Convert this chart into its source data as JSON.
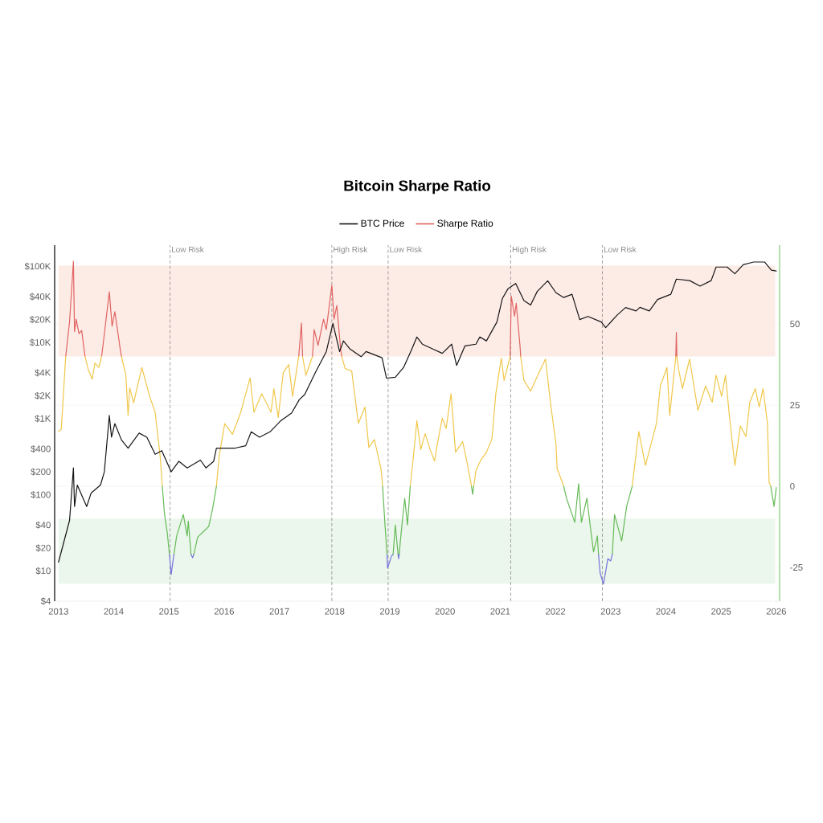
{
  "chart_data": {
    "type": "line",
    "title": "Bitcoin Sharpe Ratio",
    "xlim": [
      2012.93,
      2026.06
    ],
    "xticks": [
      2013,
      2014,
      2015,
      2016,
      2017,
      2018,
      2019,
      2020,
      2021,
      2022,
      2023,
      2024,
      2025,
      2026
    ],
    "log": "y",
    "ylim": [
      4,
      190000
    ],
    "yticks": [
      {
        "value": 4,
        "label": "$4"
      },
      {
        "value": 10,
        "label": "$10"
      },
      {
        "value": 20,
        "label": "$20"
      },
      {
        "value": 40,
        "label": "$40"
      },
      {
        "value": 100,
        "label": "$100"
      },
      {
        "value": 200,
        "label": "$200"
      },
      {
        "value": 400,
        "label": "$400"
      },
      {
        "value": 1000,
        "label": "$1K"
      },
      {
        "value": 2000,
        "label": "$2K"
      },
      {
        "value": 4000,
        "label": "$4K"
      },
      {
        "value": 10000,
        "label": "$10K"
      },
      {
        "value": 20000,
        "label": "$20K"
      },
      {
        "value": 40000,
        "label": "$40K"
      },
      {
        "value": 100000,
        "label": "$100K"
      }
    ],
    "y2lim": [
      -35.4,
      74.3
    ],
    "y2ticks": [
      -25,
      0,
      25,
      50
    ],
    "grid": "y",
    "legend": "top",
    "series": [
      {
        "name": "BTC Price",
        "color": "#151515",
        "axis": "y",
        "x": [
          2013.0,
          2013.2,
          2013.27,
          2013.29,
          2013.34,
          2013.51,
          2013.59,
          2013.76,
          2013.83,
          2013.92,
          2013.96,
          2014.02,
          2014.14,
          2014.26,
          2014.46,
          2014.6,
          2014.75,
          2014.87,
          2015.04,
          2015.18,
          2015.33,
          2015.57,
          2015.67,
          2015.81,
          2015.86,
          2016.01,
          2016.2,
          2016.39,
          2016.49,
          2016.64,
          2016.83,
          2017.02,
          2017.22,
          2017.36,
          2017.46,
          2017.65,
          2017.85,
          2017.97,
          2018.09,
          2018.16,
          2018.28,
          2018.48,
          2018.57,
          2018.86,
          2018.94,
          2019.1,
          2019.25,
          2019.4,
          2019.49,
          2019.59,
          2019.78,
          2019.95,
          2020.12,
          2020.21,
          2020.36,
          2020.56,
          2020.63,
          2020.75,
          2020.94,
          2021.04,
          2021.14,
          2021.28,
          2021.43,
          2021.55,
          2021.67,
          2021.86,
          2022.01,
          2022.15,
          2022.3,
          2022.44,
          2022.59,
          2022.83,
          2022.91,
          2023.12,
          2023.27,
          2023.46,
          2023.53,
          2023.7,
          2023.85,
          2024.09,
          2024.19,
          2024.43,
          2024.62,
          2024.82,
          2024.91,
          2025.11,
          2025.25,
          2025.4,
          2025.59,
          2025.79,
          2025.91,
          2026.0
        ],
        "values": [
          13,
          46,
          225,
          70,
          134,
          70,
          105,
          134,
          200,
          1100,
          570,
          860,
          525,
          410,
          645,
          570,
          340,
          380,
          200,
          275,
          225,
          285,
          225,
          275,
          410,
          410,
          410,
          440,
          670,
          570,
          670,
          930,
          1180,
          1770,
          2080,
          4000,
          7600,
          17800,
          7600,
          10500,
          8200,
          6500,
          7600,
          6300,
          3400,
          3500,
          4700,
          8200,
          11800,
          9500,
          8200,
          7200,
          9500,
          5000,
          9000,
          9500,
          11800,
          10500,
          18600,
          38000,
          50700,
          59600,
          35500,
          31000,
          46800,
          64600,
          45000,
          39000,
          43000,
          20000,
          22000,
          18600,
          15700,
          23000,
          28800,
          26000,
          29000,
          26000,
          36700,
          43000,
          68000,
          65000,
          55000,
          65000,
          98000,
          98000,
          80000,
          105000,
          114000,
          114000,
          89000,
          87000
        ]
      },
      {
        "name": "Sharpe Ratio",
        "color": "#e06461",
        "axis": "y2",
        "x": [
          2013.13,
          2013.2,
          2013.27,
          2013.29,
          2013.32,
          2013.37,
          2013.42,
          2013.46,
          2013.48,
          2013.63,
          2013.78,
          2013.8,
          2013.92,
          2013.97,
          2014.02,
          2014.12,
          2014.14,
          2015.5,
          2017.35,
          2017.4,
          2017.42,
          2017.5,
          2017.6,
          2017.63,
          2017.7,
          2017.8,
          2017.85,
          2017.95,
          2017.99,
          2018.04,
          2018.11,
          2018.13,
          2019.5,
          2021.18,
          2021.2,
          2021.26,
          2021.29,
          2021.36,
          2021.37,
          2022.5,
          2024.18,
          2024.19,
          2024.2
        ],
        "values": [
          40,
          50.7,
          69.3,
          47.7,
          51.5,
          47,
          48,
          42.5,
          40,
          null,
          40,
          42.6,
          59.9,
          49.3,
          53.8,
          42,
          40,
          null,
          40,
          50.3,
          40,
          null,
          40,
          48.3,
          43.4,
          51.5,
          48.3,
          61.9,
          51.5,
          55.7,
          42.1,
          40,
          null,
          40,
          58.6,
          52.4,
          56.4,
          42.9,
          40,
          null,
          40,
          47.4,
          40
        ]
      },
      {
        "color": "#f0c74a",
        "axis": "y2",
        "x": [
          2013.0,
          2013.05,
          2013.13,
          2013.3,
          2013.48,
          2013.54,
          2013.61,
          2013.66,
          2013.73,
          2013.78,
          2014.0,
          2014.14,
          2014.22,
          2014.26,
          2014.29,
          2014.36,
          2014.51,
          2014.65,
          2014.75,
          2014.84,
          2014.88,
          2015.4,
          2015.86,
          2015.91,
          2016.01,
          2016.15,
          2016.3,
          2016.47,
          2016.54,
          2016.68,
          2016.85,
          2016.9,
          2016.98,
          2017.07,
          2017.17,
          2017.24,
          2017.35,
          2017.38,
          2017.42,
          2017.48,
          2017.6,
          2017.9,
          2018.13,
          2018.19,
          2018.31,
          2018.43,
          2018.55,
          2018.62,
          2018.72,
          2018.84,
          2018.87,
          2019.1,
          2019.37,
          2019.42,
          2019.49,
          2019.56,
          2019.64,
          2019.73,
          2019.81,
          2019.86,
          2019.95,
          2020.02,
          2020.11,
          2020.19,
          2020.32,
          2020.41,
          2020.48,
          2020.5,
          2020.52,
          2020.56,
          2020.65,
          2020.75,
          2020.85,
          2020.92,
          2021.02,
          2021.07,
          2021.18,
          2021.3,
          2021.37,
          2021.43,
          2021.55,
          2021.7,
          2021.82,
          2021.91,
          2022.01,
          2022.03,
          2022.15,
          2022.9,
          2023.39,
          2023.51,
          2023.63,
          2023.73,
          2023.83,
          2023.9,
          2024.02,
          2024.07,
          2024.14,
          2024.18,
          2024.19,
          2024.2,
          2024.23,
          2024.3,
          2024.43,
          2024.58,
          2024.72,
          2024.84,
          2024.91,
          2025.01,
          2025.08,
          2025.15,
          2025.25,
          2025.35,
          2025.45,
          2025.52,
          2025.62,
          2025.69,
          2025.76,
          2025.84,
          2025.87,
          2025.9
        ],
        "values": [
          16.9,
          17.5,
          40,
          null,
          40,
          35.9,
          33,
          38,
          36.6,
          40,
          null,
          40,
          34.2,
          21.8,
          30.3,
          25.7,
          36.6,
          27.7,
          22.8,
          9.4,
          0,
          null,
          0,
          9.4,
          19.3,
          16,
          22.8,
          33.4,
          22.8,
          28.5,
          22.8,
          30.1,
          21.2,
          35,
          37.5,
          27.7,
          40,
          null,
          40,
          34.2,
          40,
          null,
          40,
          36.3,
          35.5,
          19.4,
          24.4,
          12,
          14.4,
          5.4,
          0,
          null,
          0,
          7.8,
          20.2,
          11.3,
          16.2,
          11.3,
          7.8,
          12.9,
          21,
          17.8,
          28.5,
          10.5,
          13.8,
          6.4,
          0,
          null,
          0,
          4.8,
          8.1,
          10.5,
          14.6,
          28.5,
          39.5,
          32.6,
          40,
          null,
          40,
          32.6,
          29.3,
          35,
          39.2,
          25.7,
          12.9,
          5.5,
          0,
          null,
          0,
          16.9,
          6.4,
          12.9,
          19.4,
          30.9,
          36.6,
          21.8,
          33.4,
          40,
          null,
          40,
          36,
          30.1,
          39.2,
          23.4,
          30.9,
          25.9,
          34.2,
          27.7,
          34.2,
          21.8,
          6.4,
          18.6,
          15.3,
          25.9,
          30.1,
          24.4,
          30.1,
          19.4,
          1.2,
          0
        ]
      },
      {
        "color": "#66bb58",
        "axis": "y2",
        "x": [
          2014.88,
          2014.92,
          2014.97,
          2015.01,
          2015.05,
          2015.09,
          2015.14,
          2015.26,
          2015.33,
          2015.35,
          2015.4,
          2015.43,
          2015.45,
          2015.52,
          2015.72,
          2015.79,
          2015.86,
          2017.0,
          2018.87,
          2018.91,
          2018.95,
          2019.0,
          2019.06,
          2019.1,
          2019.15,
          2019.16,
          2019.17,
          2019.2,
          2019.27,
          2019.32,
          2019.37,
          2020.0,
          2020.48,
          2020.5,
          2020.52,
          2021.5,
          2022.15,
          2022.2,
          2022.35,
          2022.42,
          2022.47,
          2022.57,
          2022.64,
          2022.69,
          2022.76,
          2022.78,
          2022.9,
          2023.03,
          2023.07,
          2023.2,
          2023.29,
          2023.39,
          2024.5,
          2025.9,
          2025.96,
          2026.0
        ],
        "values": [
          0,
          -8.7,
          -14.4,
          -21,
          null,
          -21,
          -15.3,
          -8.7,
          -15.3,
          -10.7,
          -21,
          null,
          -21,
          -15.7,
          -12.4,
          -7,
          0,
          null,
          0,
          -11.1,
          -21,
          null,
          -21,
          -11.9,
          -21,
          null,
          -21,
          -15.3,
          -3.7,
          -11.9,
          0,
          null,
          0,
          -2.5,
          0,
          null,
          0,
          -3.7,
          -11.1,
          0.8,
          -11.1,
          -3.7,
          -13.6,
          -20.2,
          -15.3,
          -21,
          null,
          -21,
          -8.7,
          -16.9,
          -6.2,
          0,
          null,
          0,
          -6.2,
          -0.4
        ]
      },
      {
        "color": "#7474dc",
        "axis": "y2",
        "x": [
          2015.01,
          2015.04,
          2015.09,
          2015.2,
          2015.4,
          2015.43,
          2015.45,
          2017.0,
          2018.95,
          2018.96,
          2019.03,
          2019.06,
          2019.1,
          2019.15,
          2019.16,
          2019.17,
          2020.0,
          2022.78,
          2022.81,
          2022.87,
          2022.95,
          2023.0,
          2023.03
        ],
        "values": [
          -21,
          -27.2,
          -21,
          null,
          -21,
          -22,
          -21,
          null,
          -21,
          -25.2,
          -21.5,
          -21,
          null,
          -21,
          -22.3,
          -21,
          null,
          -21,
          -26.8,
          -30.1,
          -22.3,
          -23,
          -21
        ]
      }
    ],
    "bands": [
      {
        "axis": "y2",
        "from": 40,
        "to": 68,
        "color": "#fdebe6"
      },
      {
        "axis": "y2",
        "from": -30,
        "to": -10,
        "color": "#ebf6ec"
      }
    ],
    "ref_lines": [
      {
        "axis": "x",
        "value": 2015.02,
        "label": "Low Risk",
        "color": "#8a8a8a",
        "line_style": "dashed"
      },
      {
        "axis": "x",
        "value": 2017.95,
        "label": "High Risk",
        "color": "#8a8a8a",
        "line_style": "dashed"
      },
      {
        "axis": "x",
        "value": 2018.97,
        "label": "Low Risk",
        "color": "#8a8a8a",
        "line_style": "dashed"
      },
      {
        "axis": "x",
        "value": 2021.19,
        "label": "High Risk",
        "color": "#8a8a8a",
        "line_style": "dashed"
      },
      {
        "axis": "x",
        "value": 2022.85,
        "label": "Low Risk",
        "color": "#8a8a8a",
        "line_style": "dashed"
      }
    ]
  }
}
